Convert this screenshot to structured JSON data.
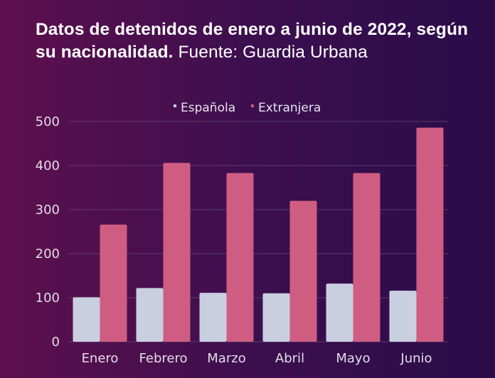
{
  "header": {
    "title": "Datos de detenidos de enero a junio de 2022, según su nacionalidad.",
    "source": "Fuente: Guardia Urbana"
  },
  "colors": {
    "espanola": "#c9cfe0",
    "extranjera": "#cf5d82",
    "grid": "#6b4f7a"
  },
  "chart_data": {
    "type": "bar",
    "categories": [
      "Enero",
      "Febrero",
      "Marzo",
      "Abril",
      "Mayo",
      "Junio"
    ],
    "series": [
      {
        "name": "Española",
        "values": [
          101,
          122,
          111,
          110,
          132,
          116
        ]
      },
      {
        "name": "Extranjera",
        "values": [
          266,
          406,
          383,
          320,
          383,
          486
        ]
      }
    ],
    "ylim": [
      0,
      500
    ],
    "yticks": [
      0,
      100,
      200,
      300,
      400,
      500
    ],
    "legend": "top-center",
    "grid": true
  }
}
